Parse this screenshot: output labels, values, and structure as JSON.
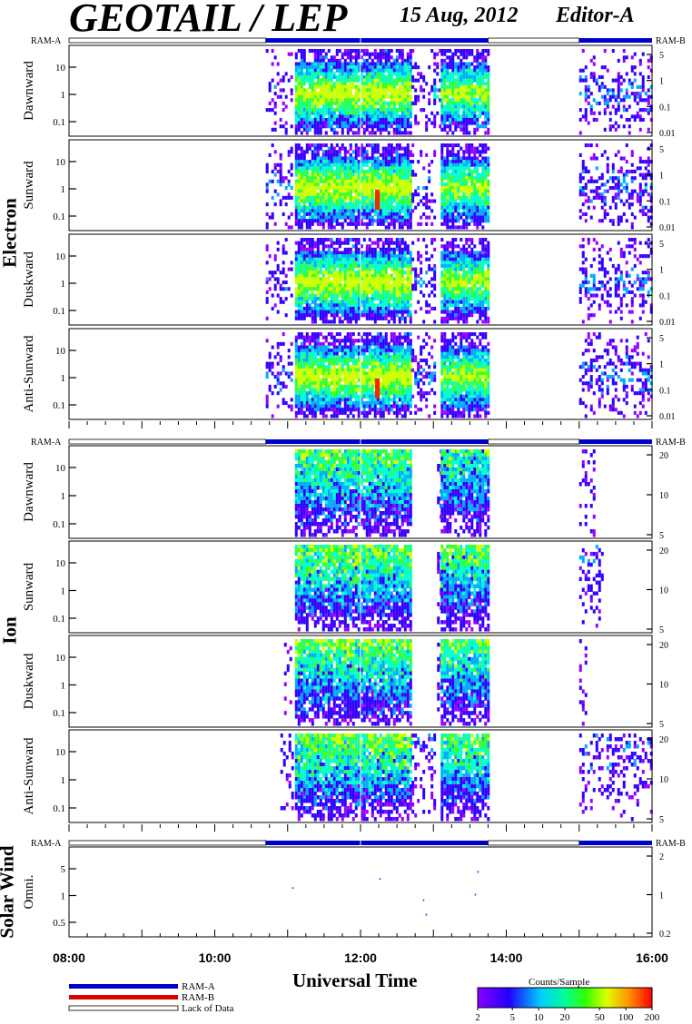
{
  "header": {
    "title": "GEOTAIL / LEP",
    "date": "15 Aug, 2012",
    "editor": "Editor-A"
  },
  "x_axis": {
    "title": "Universal Time",
    "tick_labels": [
      "08:00",
      "10:00",
      "12:00",
      "14:00",
      "16:00"
    ]
  },
  "ram_labels": {
    "left": "RAM-A",
    "right": "RAM-B"
  },
  "groups": [
    {
      "name": "Electron",
      "panels": [
        "Dawnward",
        "Sunward",
        "Duskward",
        "Anti-Sunward"
      ]
    },
    {
      "name": "Ion",
      "panels": [
        "Dawnward",
        "Sunward",
        "Duskward",
        "Anti-Sunward"
      ]
    },
    {
      "name": "Solar Wind",
      "panels": [
        "Omni."
      ]
    }
  ],
  "legend": {
    "ram_a": "RAM-A",
    "ram_b": "RAM-B",
    "lack": "Lack of Data",
    "ram_a_color": "#0000cc",
    "ram_b_color": "#dd0000"
  },
  "colorbar": {
    "title": "Counts/Sample",
    "ticks": [
      "2",
      "5",
      "10",
      "20",
      "50",
      "100",
      "200"
    ],
    "colors": [
      "#8000ff",
      "#0000ff",
      "#00ffff",
      "#00ff00",
      "#ffff00",
      "#ff0000"
    ]
  },
  "chart_data": {
    "type": "heatmap",
    "x_unit": "UT hours",
    "xlim": [
      8,
      16
    ],
    "ram_status": [
      {
        "start": 8.0,
        "end": 10.7,
        "mode": "lack"
      },
      {
        "start": 10.7,
        "end": 13.75,
        "mode": "RAM-A"
      },
      {
        "start": 13.75,
        "end": 15.0,
        "mode": "lack"
      },
      {
        "start": 15.0,
        "end": 16.0,
        "mode": "RAM-A"
      }
    ],
    "panels": [
      {
        "group": "Electron",
        "name": "Dawnward",
        "left_ticks": [
          "10",
          "1",
          "0.1"
        ],
        "right_ticks": [
          "5",
          "1",
          "0.1",
          "0.01"
        ],
        "bursts": [
          [
            10.7,
            11.05,
            0.25
          ],
          [
            11.1,
            12.7,
            1.0
          ],
          [
            12.7,
            13.0,
            0.25
          ],
          [
            13.0,
            13.1,
            0.4
          ],
          [
            13.1,
            13.75,
            0.9
          ],
          [
            15.0,
            16.0,
            0.35
          ]
        ]
      },
      {
        "group": "Electron",
        "name": "Sunward",
        "left_ticks": [
          "10",
          "1",
          "0.1"
        ],
        "right_ticks": [
          "5",
          "1",
          "0.1",
          "0.01"
        ],
        "bursts": [
          [
            10.7,
            11.05,
            0.3
          ],
          [
            11.1,
            12.7,
            1.0
          ],
          [
            12.7,
            13.0,
            0.25
          ],
          [
            13.1,
            13.75,
            0.9
          ],
          [
            15.0,
            16.0,
            0.35
          ]
        ]
      },
      {
        "group": "Electron",
        "name": "Duskward",
        "left_ticks": [
          "10",
          "1",
          "0.1"
        ],
        "right_ticks": [
          "5",
          "1",
          "0.1",
          "0.01"
        ],
        "bursts": [
          [
            10.7,
            11.05,
            0.25
          ],
          [
            11.1,
            12.7,
            1.0
          ],
          [
            12.7,
            13.0,
            0.3
          ],
          [
            13.1,
            13.75,
            0.9
          ],
          [
            15.0,
            16.0,
            0.35
          ]
        ]
      },
      {
        "group": "Electron",
        "name": "Anti-Sunward",
        "left_ticks": [
          "10",
          "1",
          "0.1"
        ],
        "right_ticks": [
          "5",
          "1",
          "0.1",
          "0.01"
        ],
        "bursts": [
          [
            10.7,
            11.05,
            0.3
          ],
          [
            11.1,
            12.7,
            1.0
          ],
          [
            12.7,
            13.0,
            0.3
          ],
          [
            13.1,
            13.75,
            0.9
          ],
          [
            15.0,
            16.0,
            0.35
          ]
        ]
      },
      {
        "group": "Ion",
        "name": "Dawnward",
        "left_ticks": [
          "10",
          "1",
          "0.1"
        ],
        "right_ticks": [
          "20",
          "10",
          "5"
        ],
        "bursts": [
          [
            11.1,
            12.7,
            0.8
          ],
          [
            13.05,
            13.1,
            0.3
          ],
          [
            13.1,
            13.75,
            0.7
          ],
          [
            15.0,
            15.2,
            0.15
          ]
        ]
      },
      {
        "group": "Ion",
        "name": "Sunward",
        "left_ticks": [
          "10",
          "1",
          "0.1"
        ],
        "right_ticks": [
          "20",
          "10",
          "5"
        ],
        "bursts": [
          [
            11.1,
            12.7,
            0.85
          ],
          [
            13.05,
            13.1,
            0.4
          ],
          [
            13.1,
            13.75,
            0.8
          ],
          [
            15.0,
            15.3,
            0.3
          ]
        ]
      },
      {
        "group": "Ion",
        "name": "Duskward",
        "left_ticks": [
          "10",
          "1",
          "0.1"
        ],
        "right_ticks": [
          "20",
          "10",
          "5"
        ],
        "bursts": [
          [
            10.95,
            11.05,
            0.15
          ],
          [
            11.1,
            12.7,
            0.85
          ],
          [
            13.05,
            13.1,
            0.3
          ],
          [
            13.1,
            13.75,
            0.8
          ],
          [
            15.0,
            15.1,
            0.15
          ]
        ]
      },
      {
        "group": "Ion",
        "name": "Anti-Sunward",
        "left_ticks": [
          "10",
          "1",
          "0.1"
        ],
        "right_ticks": [
          "20",
          "10",
          "5"
        ],
        "bursts": [
          [
            10.9,
            11.05,
            0.25
          ],
          [
            11.1,
            12.7,
            0.85
          ],
          [
            12.7,
            13.0,
            0.25
          ],
          [
            13.1,
            13.75,
            0.8
          ],
          [
            15.0,
            16.0,
            0.3
          ]
        ]
      },
      {
        "group": "Solar Wind",
        "name": "Omni.",
        "left_ticks": [
          "5",
          "1",
          "0.5"
        ],
        "right_ticks": [
          "2",
          "1",
          "0.2"
        ],
        "bursts": [
          [
            10.8,
            13.7,
            0.03
          ]
        ]
      }
    ]
  }
}
